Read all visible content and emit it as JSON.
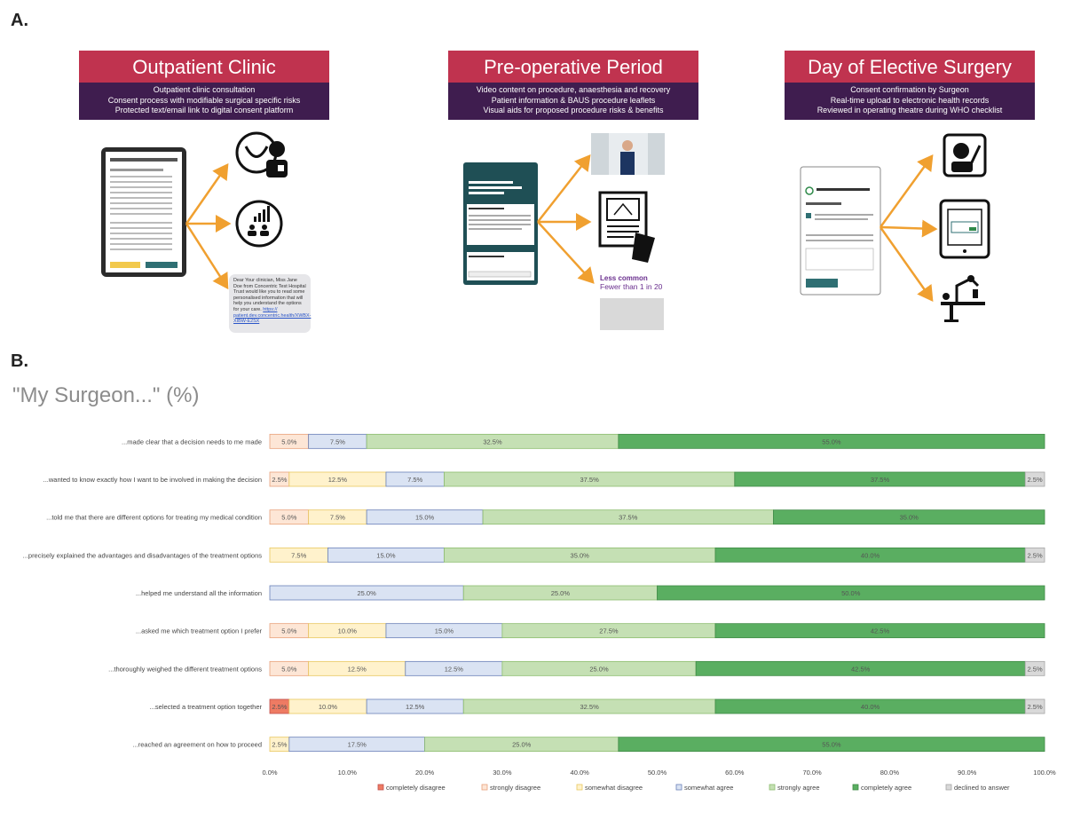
{
  "panel_a_label": "A.",
  "panel_b_label": "B.",
  "stages": [
    {
      "title": "Outpatient Clinic",
      "lines": [
        "Outpatient clinic consultation",
        "Consent process with modifiable surgical specific risks",
        "Protected text/email link to digital consent platform"
      ]
    },
    {
      "title": "Pre-operative Period",
      "lines": [
        "Video content on procedure, anaesthesia and recovery",
        "Patient information & BAUS procedure leaflets",
        "Visual aids for proposed procedure risks & benefits"
      ]
    },
    {
      "title": "Day of Elective Surgery",
      "lines": [
        "Consent confirmation by Surgeon",
        "Real-time upload to electronic health records",
        "Reviewed in operating theatre during WHO checklist"
      ]
    }
  ],
  "sms": {
    "text": "Dear Your clinician, Miss Jane Doe from Concentric Test Hospital Trust would like you to read some personalised information that will help you understand the options for your care.",
    "link": "https:// patient.dev.concentric.health/XWBX-XIBW-E2SX"
  },
  "risk_visual": {
    "heading": "Less common",
    "sub": "Fewer than 1 in 20"
  },
  "icons": [
    "prostate-doctor-icon",
    "chart-people-icon",
    "video-thumbnail",
    "leaflet-icon",
    "surgeon-icon",
    "consent-tablet-icon",
    "robot-surgery-icon"
  ],
  "colors": {
    "stage_title": "#c0334f",
    "stage_desc": "#3f1d4f",
    "arrow": "#f0a030"
  },
  "chart_data": {
    "type": "bar",
    "orientation": "horizontal",
    "stacked": true,
    "title": "\"My Surgeon...\"  (%)",
    "xlim": [
      0,
      100
    ],
    "x_ticks": [
      "0.0%",
      "10.0%",
      "20.0%",
      "30.0%",
      "40.0%",
      "50.0%",
      "60.0%",
      "70.0%",
      "80.0%",
      "90.0%",
      "100.0%"
    ],
    "legend_position": "bottom",
    "categories": [
      "...made clear that a decision needs to me made",
      "...wanted to know exactly how I want to be involved in making the decision",
      "...told me that there are different options for treating my medical condition",
      "...precisely explained the advantages and disadvantages of the treatment options",
      "...helped me understand all the information",
      "...asked me which treatment option I prefer",
      "...thoroughly weighed the different treatment options",
      "...selected a treatment option together",
      "...reached an agreement on how to proceed"
    ],
    "series": [
      {
        "name": "completely disagree",
        "color": "#ee7b63",
        "edge": "#c0504d",
        "values": [
          0,
          0,
          0,
          0,
          0,
          0,
          0,
          2.5,
          0
        ]
      },
      {
        "name": "strongly disagree",
        "color": "#fde6d6",
        "edge": "#e8a17a",
        "values": [
          5.0,
          2.5,
          5.0,
          0,
          0,
          5.0,
          5.0,
          0,
          0
        ]
      },
      {
        "name": "somewhat disagree",
        "color": "#fff2cc",
        "edge": "#e8c860",
        "values": [
          0,
          12.5,
          7.5,
          7.5,
          0,
          10.0,
          12.5,
          10.0,
          2.5
        ]
      },
      {
        "name": "somewhat agree",
        "color": "#dae3f3",
        "edge": "#6a80b8",
        "values": [
          7.5,
          7.5,
          15.0,
          15.0,
          25.0,
          15.0,
          12.5,
          12.5,
          17.5
        ]
      },
      {
        "name": "strongly agree",
        "color": "#c5e0b4",
        "edge": "#8cbc6e",
        "values": [
          32.5,
          37.5,
          37.5,
          35.0,
          25.0,
          27.5,
          25.0,
          32.5,
          25.0
        ]
      },
      {
        "name": "completely agree",
        "color": "#5aae61",
        "edge": "#3f8a46",
        "values": [
          55.0,
          37.5,
          35.0,
          40.0,
          50.0,
          42.5,
          42.5,
          40.0,
          55.0
        ]
      },
      {
        "name": "declined to answer",
        "color": "#d9d9d9",
        "edge": "#a6a6a6",
        "values": [
          0,
          2.5,
          0,
          2.5,
          0,
          0,
          2.5,
          2.5,
          0
        ]
      }
    ],
    "value_labels": [
      [
        "",
        "5.0%",
        "",
        "7.5%",
        "32.5%",
        "55.0%",
        ""
      ],
      [
        "",
        "2.5%",
        "12.5%",
        "7.5%",
        "37.5%",
        "37.5%",
        "2.5%"
      ],
      [
        "",
        "5.0%",
        "7.5%",
        "15.0%",
        "37.5%",
        "35.0%",
        ""
      ],
      [
        "",
        "",
        "7.5%",
        "15.0%",
        "35.0%",
        "40.0%",
        "2.5%"
      ],
      [
        "",
        "",
        "",
        "25.0%",
        "25.0%",
        "50.0%",
        ""
      ],
      [
        "",
        "5.0%",
        "10.0%",
        "15.0%",
        "27.5%",
        "42.5%",
        ""
      ],
      [
        "",
        "5.0%",
        "12.5%",
        "12.5%",
        "25.0%",
        "42.5%",
        "2.5%"
      ],
      [
        "2.5%",
        "",
        "10.0%",
        "12.5%",
        "32.5%",
        "40.0%",
        "2.5%"
      ],
      [
        "",
        "",
        "2.5%",
        "17.5%",
        "25.0%",
        "55.0%",
        ""
      ]
    ]
  }
}
